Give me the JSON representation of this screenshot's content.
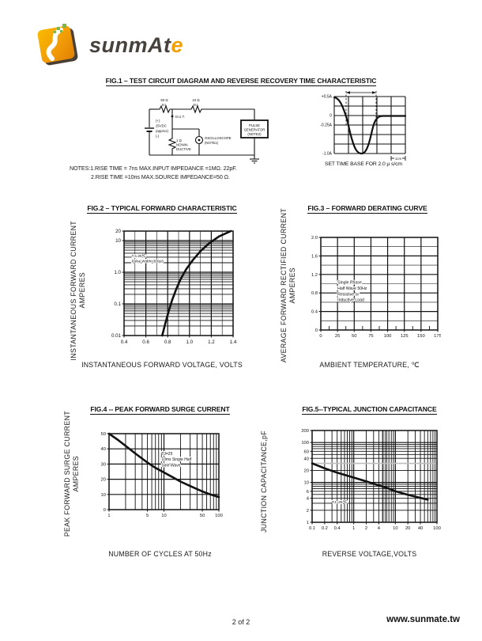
{
  "brand": {
    "main": "sunmAt",
    "accent": "e",
    "orange": "#F0A000",
    "dark": "#48423C",
    "green": "#7AB648"
  },
  "footer": {
    "page": "2 of 2",
    "site": "www.sunmate.tw"
  },
  "fig1": {
    "title": "FIG.1 – TEST CIRCUIT DIAGRAM AND REVERSE RECOVERY TIME CHARACTERISTIC",
    "circuit": {
      "r1": [
        "50 Ω",
        "N.I."
      ],
      "r2": [
        "10 Ω",
        "N.I."
      ],
      "battery": [
        "(+)",
        "25VDC",
        "(approx)",
        "(-)"
      ],
      "dut": "D.U.T.",
      "r3": [
        "1 Ω",
        "NONIN-",
        "DUCTIVE"
      ],
      "oscilloscope": [
        "OSCILLOSCOPE",
        "(NOTE1)"
      ],
      "pulse_generator": [
        "PULSE",
        "GENERATOR",
        "(NOTE2)"
      ]
    },
    "waveform": {
      "yticks": [
        "+0.5A",
        "0",
        "-0.25A",
        "-1.0A"
      ],
      "cm_label": "1cm",
      "caption": "SET TIME BASE FOR 2.0 μ s/cm"
    },
    "notes": [
      "NOTES:1.RISE TIME = 7ns MAX.INPUT IMPEDANCE =1MΩ. 22pF.",
      "2.RISE TIME =10ns MAX.SOURCE IMPEDANCE=50 Ω."
    ]
  },
  "fig2": {
    "title": "FIG.2 – TYPICAL FORWARD CHARACTERISTIC",
    "ylabel": [
      "INSTANTANEOUS FORWARD CURRENT",
      "AMPERES"
    ],
    "xlabel": "INSTANTANEOUS FORWARD VOLTAGE,  VOLTS",
    "chart_data": {
      "type": "line",
      "x": {
        "scale": "linear",
        "min": 0.4,
        "max": 1.4,
        "minorStep": 0.1,
        "majorStep": 0.2,
        "labels": [
          [
            0.4,
            "0.4"
          ],
          [
            0.6,
            "0.6"
          ],
          [
            0.8,
            "0.8"
          ],
          [
            1.0,
            "1.0"
          ],
          [
            1.2,
            "1.2"
          ],
          [
            1.4,
            "1.4"
          ]
        ]
      },
      "y": {
        "scale": "log",
        "min": 0.01,
        "max": 20,
        "labels": [
          [
            20,
            "20"
          ],
          [
            10,
            "10"
          ],
          [
            1,
            "1.0"
          ],
          [
            0.1,
            "0.1"
          ],
          [
            0.01,
            "0.01"
          ]
        ]
      },
      "annotation": {
        "lines": [
          "TJ=25℃",
          "Pulse Width<300μS"
        ],
        "at": [
          0.47,
          3.0
        ],
        "fs": 4.6
      },
      "series": [
        {
          "name": "forward-characteristic",
          "points": [
            [
              0.75,
              0.01
            ],
            [
              0.78,
              0.025
            ],
            [
              0.81,
              0.06
            ],
            [
              0.84,
              0.13
            ],
            [
              0.88,
              0.3
            ],
            [
              0.92,
              0.62
            ],
            [
              0.97,
              1.25
            ],
            [
              1.03,
              2.4
            ],
            [
              1.1,
              4.6
            ],
            [
              1.18,
              8.2
            ],
            [
              1.27,
              13.5
            ],
            [
              1.38,
              20
            ]
          ]
        }
      ]
    }
  },
  "fig3": {
    "title": "FIG.3 – FORWARD DERATING CURVE",
    "ylabel": [
      "AVERAGE FORWARD RECTIFIED CURRENT",
      "AMPERES"
    ],
    "xlabel": "AMBIENT TEMPERATURE, ℃",
    "chart_data": {
      "type": "line",
      "x": {
        "scale": "linear",
        "min": 0,
        "max": 175,
        "minorStep": 25,
        "majorStep": 25,
        "innerTickStep": 12.5,
        "labels": [
          [
            0,
            "0"
          ],
          [
            25,
            "25"
          ],
          [
            50,
            "50"
          ],
          [
            75,
            "75"
          ],
          [
            100,
            "100"
          ],
          [
            125,
            "125"
          ],
          [
            150,
            "150"
          ],
          [
            175,
            "175"
          ]
        ]
      },
      "y": {
        "scale": "linear",
        "min": 0,
        "max": 2.0,
        "minorStep": 0.2,
        "majorStep": 0.4,
        "labels": [
          [
            0,
            "0"
          ],
          [
            0.4,
            "0.4"
          ],
          [
            0.8,
            "0.8"
          ],
          [
            1.2,
            "1.2"
          ],
          [
            1.6,
            "1.6"
          ],
          [
            2.0,
            "2.0"
          ]
        ]
      },
      "annotation": {
        "lines": [
          "Single Phase",
          "Half Wave 50Hz",
          "Resistive or",
          "Inductive Load"
        ],
        "at": [
          25,
          1.0
        ],
        "fs": 5.2
      },
      "series": []
    }
  },
  "fig4": {
    "title": "FIG.4 -- PEAK FORWARD SURGE CURRENT",
    "ylabel": [
      "PEAK FORWARD SURGE CURRENT",
      "AMPERES"
    ],
    "xlabel": "NUMBER OF CYCLES AT 50Hz",
    "chart_data": {
      "type": "line",
      "x": {
        "scale": "log",
        "min": 1,
        "max": 100,
        "labels": [
          [
            1,
            "1"
          ],
          [
            5,
            "5"
          ],
          [
            10,
            "10"
          ],
          [
            50,
            "50"
          ],
          [
            100,
            "100"
          ]
        ]
      },
      "y": {
        "scale": "linear",
        "min": 0,
        "max": 50,
        "minorStep": 10,
        "majorStep": 10,
        "labels": [
          [
            0,
            "0"
          ],
          [
            10,
            "10"
          ],
          [
            20,
            "20"
          ],
          [
            30,
            "30"
          ],
          [
            40,
            "40"
          ],
          [
            50,
            "50"
          ]
        ]
      },
      "annotation": {
        "lines": [
          "TJ=25",
          "10ms Single Half",
          "Sine-Wave"
        ],
        "at": [
          9,
          36
        ],
        "fs": 5
      },
      "series": [
        {
          "name": "surge-current",
          "points": [
            [
              1,
              50
            ],
            [
              1.5,
              45.5
            ],
            [
              2,
              42
            ],
            [
              3,
              37
            ],
            [
              5,
              31
            ],
            [
              7,
              27.5
            ],
            [
              10,
              24.5
            ],
            [
              15,
              21
            ],
            [
              20,
              18.5
            ],
            [
              30,
              15.5
            ],
            [
              50,
              12
            ],
            [
              70,
              10
            ],
            [
              100,
              8.3
            ]
          ]
        }
      ]
    }
  },
  "fig5": {
    "title": "FIG.5--TYPICAL JUNCTION CAPACITANCE",
    "ylabel": [
      "JUNCTION CAPACITANCE,pF"
    ],
    "xlabel": "REVERSE VOLTAGE,VOLTS",
    "chart_data": {
      "type": "line",
      "x": {
        "scale": "log",
        "min": 0.1,
        "max": 100,
        "labels": [
          [
            0.1,
            "0.1"
          ],
          [
            0.2,
            "0.2"
          ],
          [
            0.4,
            "0.4"
          ],
          [
            1,
            "1"
          ],
          [
            2,
            "2"
          ],
          [
            4,
            "4"
          ],
          [
            10,
            "10"
          ],
          [
            20,
            "20"
          ],
          [
            40,
            "40"
          ],
          [
            100,
            "100"
          ]
        ]
      },
      "y": {
        "scale": "log",
        "min": 1,
        "max": 200,
        "labels": [
          [
            200,
            "200"
          ],
          [
            100,
            "100"
          ],
          [
            60,
            "60"
          ],
          [
            40,
            "40"
          ],
          [
            20,
            "20"
          ],
          [
            10,
            "10"
          ],
          [
            6,
            "6"
          ],
          [
            4,
            "4"
          ],
          [
            2,
            "2"
          ],
          [
            1,
            "1"
          ]
        ]
      },
      "annotation": {
        "lines": [
          "TJ=25℃"
        ],
        "at": [
          0.3,
          3.0
        ],
        "fs": 4.8
      },
      "bands": [
        {
          "x0": 4.6,
          "x1": 6.6,
          "color": "#c9c9c9"
        }
      ],
      "hlines": [
        {
          "v": 30,
          "color": "#bdbdbd"
        }
      ],
      "series": [
        {
          "name": "junction-capacitance",
          "points": [
            [
              0.1,
              30
            ],
            [
              0.2,
              22.5
            ],
            [
              0.4,
              17.5
            ],
            [
              1,
              13.2
            ],
            [
              2,
              10.6
            ],
            [
              4,
              8.4
            ],
            [
              7,
              7
            ],
            [
              10,
              6
            ],
            [
              20,
              4.9
            ],
            [
              40,
              4.1
            ],
            [
              60,
              3.7
            ]
          ]
        }
      ]
    }
  }
}
